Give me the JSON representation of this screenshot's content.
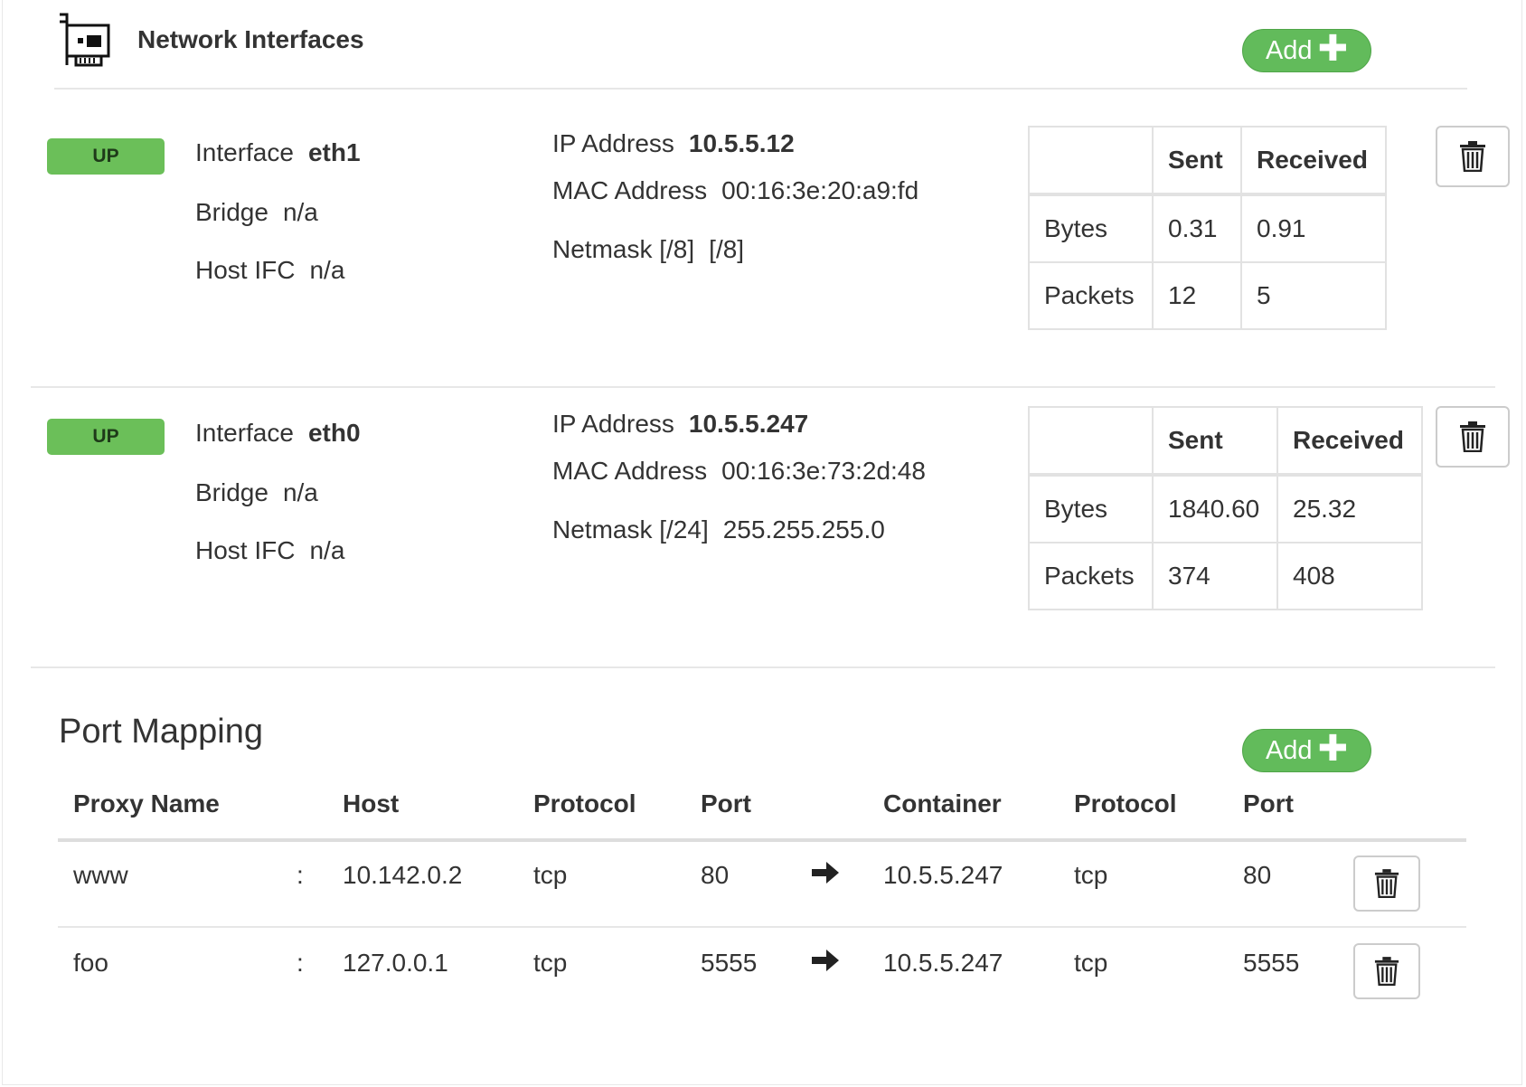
{
  "header": {
    "title": "Network Interfaces",
    "add_label": "Add"
  },
  "stats_labels": {
    "sent": "Sent",
    "received": "Received",
    "bytes": "Bytes",
    "packets": "Packets"
  },
  "labels": {
    "interface": "Interface",
    "bridge": "Bridge",
    "host_ifc": "Host IFC",
    "ip": "IP Address",
    "mac": "MAC Address"
  },
  "interfaces": [
    {
      "status": "UP",
      "name": "eth1",
      "bridge": "n/a",
      "host_ifc": "n/a",
      "ip": "10.5.5.12",
      "mac": "00:16:3e:20:a9:fd",
      "netmask_label": "Netmask [/8]",
      "netmask": "[/8]",
      "bytes_sent": "0.31",
      "bytes_received": "0.91",
      "packets_sent": "12",
      "packets_received": "5"
    },
    {
      "status": "UP",
      "name": "eth0",
      "bridge": "n/a",
      "host_ifc": "n/a",
      "ip": "10.5.5.247",
      "mac": "00:16:3e:73:2d:48",
      "netmask_label": "Netmask [/24]",
      "netmask": "255.255.255.0",
      "bytes_sent": "1840.60",
      "bytes_received": "25.32",
      "packets_sent": "374",
      "packets_received": "408"
    }
  ],
  "port_mapping": {
    "title": "Port Mapping",
    "add_label": "Add",
    "columns": [
      "Proxy Name",
      "Host",
      "Protocol",
      "Port",
      "Container",
      "Protocol",
      "Port"
    ],
    "separator": ":",
    "rows": [
      {
        "proxy_name": "www",
        "host": "10.142.0.2",
        "host_protocol": "tcp",
        "host_port": "80",
        "container": "10.5.5.247",
        "container_protocol": "tcp",
        "container_port": "80"
      },
      {
        "proxy_name": "foo",
        "host": "127.0.0.1",
        "host_protocol": "tcp",
        "host_port": "5555",
        "container": "10.5.5.247",
        "container_protocol": "tcp",
        "container_port": "5555"
      }
    ]
  },
  "colors": {
    "accent_green": "#62bb5b",
    "badge_green": "#6bbf59",
    "divider": "#e7e7e7"
  }
}
